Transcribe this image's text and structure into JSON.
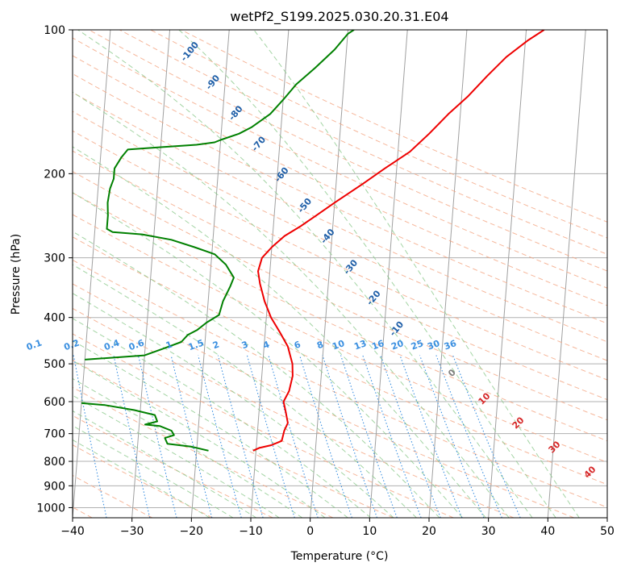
{
  "chart_data": {
    "type": "line",
    "title": "wetPf2_S199.2025.030.20.31.E04",
    "xlabel": "Temperature (°C)",
    "ylabel": "Pressure (hPa)",
    "xlim": [
      -40,
      50
    ],
    "ylim": [
      1050,
      100
    ],
    "y_scale": "log",
    "skew": true,
    "grid": true,
    "x_ticks": [
      -40,
      -30,
      -20,
      -10,
      0,
      10,
      20,
      30,
      40,
      50
    ],
    "x_tick_labels": [
      "−40",
      "−30",
      "−20",
      "−10",
      "0",
      "10",
      "20",
      "30",
      "40",
      "50"
    ],
    "y_ticks": [
      100,
      200,
      300,
      400,
      500,
      600,
      700,
      800,
      900,
      1000
    ],
    "y_tick_labels": [
      "100",
      "200",
      "300",
      "400",
      "500",
      "600",
      "700",
      "800",
      "900",
      "1000"
    ],
    "series": [
      {
        "color": "#ee0000",
        "points": [
          [
            -10.5,
            760
          ],
          [
            -9.5,
            750
          ],
          [
            -7.5,
            740
          ],
          [
            -5.8,
            725
          ],
          [
            -5.5,
            690
          ],
          [
            -5.0,
            665
          ],
          [
            -5.5,
            630
          ],
          [
            -6.0,
            600
          ],
          [
            -5.2,
            570
          ],
          [
            -4.8,
            530
          ],
          [
            -5.0,
            500
          ],
          [
            -6.0,
            460
          ],
          [
            -7.5,
            430
          ],
          [
            -9.2,
            400
          ],
          [
            -10.5,
            370
          ],
          [
            -11.5,
            340
          ],
          [
            -12.0,
            320
          ],
          [
            -11.5,
            300
          ],
          [
            -10.0,
            285
          ],
          [
            -8.0,
            270
          ],
          [
            -5.5,
            258
          ],
          [
            -3.0,
            245
          ],
          [
            0.0,
            230
          ],
          [
            4.5,
            210
          ],
          [
            8.0,
            195
          ],
          [
            12.0,
            180
          ],
          [
            15.0,
            165
          ],
          [
            18.0,
            150
          ],
          [
            21.0,
            138
          ],
          [
            24.0,
            125
          ],
          [
            27.0,
            114
          ],
          [
            30.5,
            105
          ],
          [
            33.0,
            100
          ]
        ]
      },
      {
        "color": "#008000",
        "points": [
          [
            -18.0,
            760
          ],
          [
            -21.0,
            745
          ],
          [
            -25.0,
            735
          ],
          [
            -25.5,
            715
          ],
          [
            -24.0,
            705
          ],
          [
            -24.5,
            690
          ],
          [
            -26.5,
            675
          ],
          [
            -29.0,
            670
          ],
          [
            -27.0,
            660
          ],
          [
            -27.5,
            640
          ],
          [
            -31.0,
            625
          ],
          [
            -36.0,
            610
          ],
          [
            -39.5,
            605
          ],
          [
            -40.0,
            604
          ]
        ]
      },
      {
        "color": "#008000",
        "points": [
          [
            -40.0,
            490
          ],
          [
            -30.0,
            480
          ],
          [
            -27.0,
            465
          ],
          [
            -24.0,
            450
          ],
          [
            -23.0,
            435
          ],
          [
            -21.5,
            425
          ],
          [
            -20.0,
            410
          ],
          [
            -18.0,
            395
          ],
          [
            -17.5,
            370
          ],
          [
            -16.5,
            345
          ],
          [
            -16.0,
            330
          ],
          [
            -17.5,
            310
          ],
          [
            -19.5,
            295
          ],
          [
            -23.0,
            285
          ],
          [
            -27.0,
            275
          ],
          [
            -32.0,
            268
          ],
          [
            -37.0,
            265
          ],
          [
            -38.0,
            261
          ],
          [
            -38.0,
            245
          ],
          [
            -38.2,
            230
          ],
          [
            -38.0,
            215
          ],
          [
            -37.5,
            205
          ],
          [
            -37.5,
            195
          ],
          [
            -36.5,
            185
          ],
          [
            -35.5,
            178
          ],
          [
            -30.0,
            176
          ],
          [
            -24.0,
            174
          ],
          [
            -21.0,
            172
          ],
          [
            -20.0,
            170
          ],
          [
            -17.0,
            165
          ],
          [
            -15.0,
            160
          ],
          [
            -12.0,
            150
          ],
          [
            -10.0,
            140
          ],
          [
            -8.0,
            130
          ],
          [
            -5.0,
            120
          ],
          [
            -2.0,
            110
          ],
          [
            0.0,
            102
          ],
          [
            1.0,
            100
          ]
        ]
      }
    ],
    "dry_adiabat_labels": [
      "-100",
      "-90",
      "-80",
      "-70",
      "-60",
      "-50",
      "-40",
      "-30",
      "-20",
      "-10"
    ],
    "mixing_ratio_labels": [
      "0.1",
      "0.2",
      "0.4",
      "0.6",
      "1",
      "1.5",
      "2",
      "3",
      "4",
      "6",
      "8",
      "10",
      "13",
      "16",
      "20",
      "25",
      "30",
      "36"
    ],
    "moist_adiabat_labels": [
      "0",
      "10",
      "20",
      "30",
      "40"
    ],
    "colors": {
      "temperature": "#ee0000",
      "dewpoint": "#008000",
      "isotherm": "#a0a0a0",
      "grid": "#b0b0b0",
      "dry_adiabat": "#f4a582",
      "moist_adiabat": "#8cc98c",
      "mixing_ratio": "#3a8fe0",
      "dry_label": "#1f5fa8",
      "moist_label": "#d62728",
      "zero_label": "#808080"
    }
  }
}
